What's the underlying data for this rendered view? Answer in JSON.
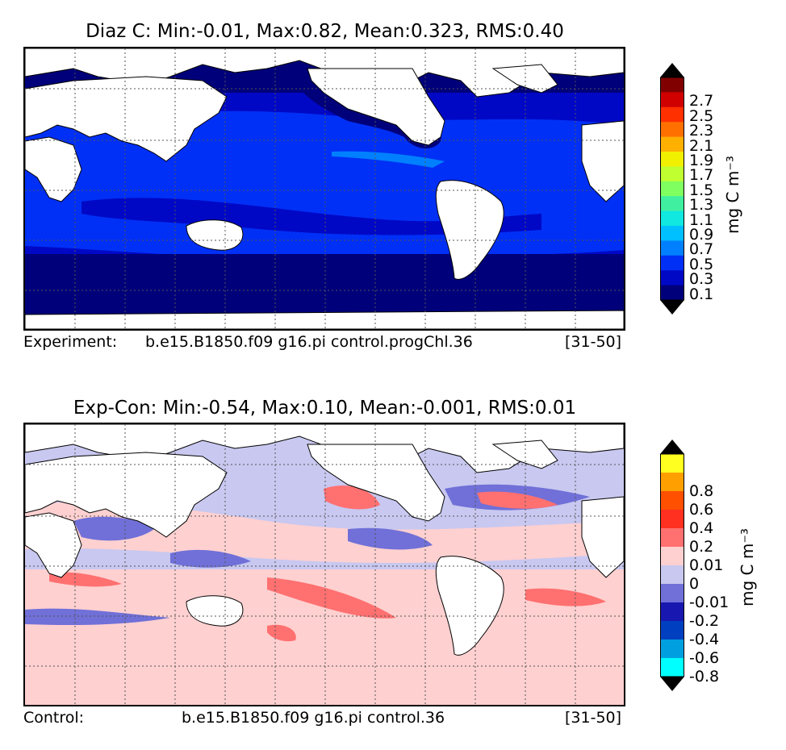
{
  "panels": [
    {
      "title": "Diaz C: Min:-0.01, Max:0.82, Mean:0.323, RMS:0.40",
      "footer_left": "Experiment:",
      "footer_case": "b.e15.B1850.f09 g16.pi control.progChl.36",
      "footer_years": "[31-50]",
      "colorbar": {
        "unit": "mg C m⁻³",
        "levels": [
          "0.1",
          "0.3",
          "0.5",
          "0.7",
          "0.9",
          "1.1",
          "1.3",
          "1.5",
          "1.7",
          "1.9",
          "2.1",
          "2.3",
          "2.5",
          "2.7"
        ],
        "colors": [
          "#00007a",
          "#0008c6",
          "#0030f5",
          "#0080ff",
          "#00c0ff",
          "#10e8e0",
          "#40f0a0",
          "#80ff60",
          "#c0ff30",
          "#f0f000",
          "#ffb000",
          "#ff7000",
          "#ff3000",
          "#d00000",
          "#800000"
        ],
        "under_color": "#000000",
        "over_color": "#000000"
      }
    },
    {
      "title": "Exp-Con: Min:-0.54, Max:0.10, Mean:-0.001, RMS:0.01",
      "footer_left": "Control:",
      "footer_case": "b.e15.B1850.f09 g16.pi control.36",
      "footer_years": "[31-50]",
      "colorbar": {
        "unit": "mg C m⁻³",
        "levels": [
          "-0.8",
          "-0.6",
          "-0.4",
          "-0.2",
          "-0.01",
          "0",
          "0.01",
          "0.2",
          "0.4",
          "0.6",
          "0.8"
        ],
        "colors": [
          "#00ffff",
          "#00a0e0",
          "#0040c0",
          "#1818b0",
          "#7070d8",
          "#c8c8f0",
          "#ffd0d0",
          "#ff7070",
          "#ff3020",
          "#ff5000",
          "#ffa000",
          "#ffff20"
        ],
        "under_color": "#000000",
        "over_color": "#000000"
      }
    }
  ]
}
